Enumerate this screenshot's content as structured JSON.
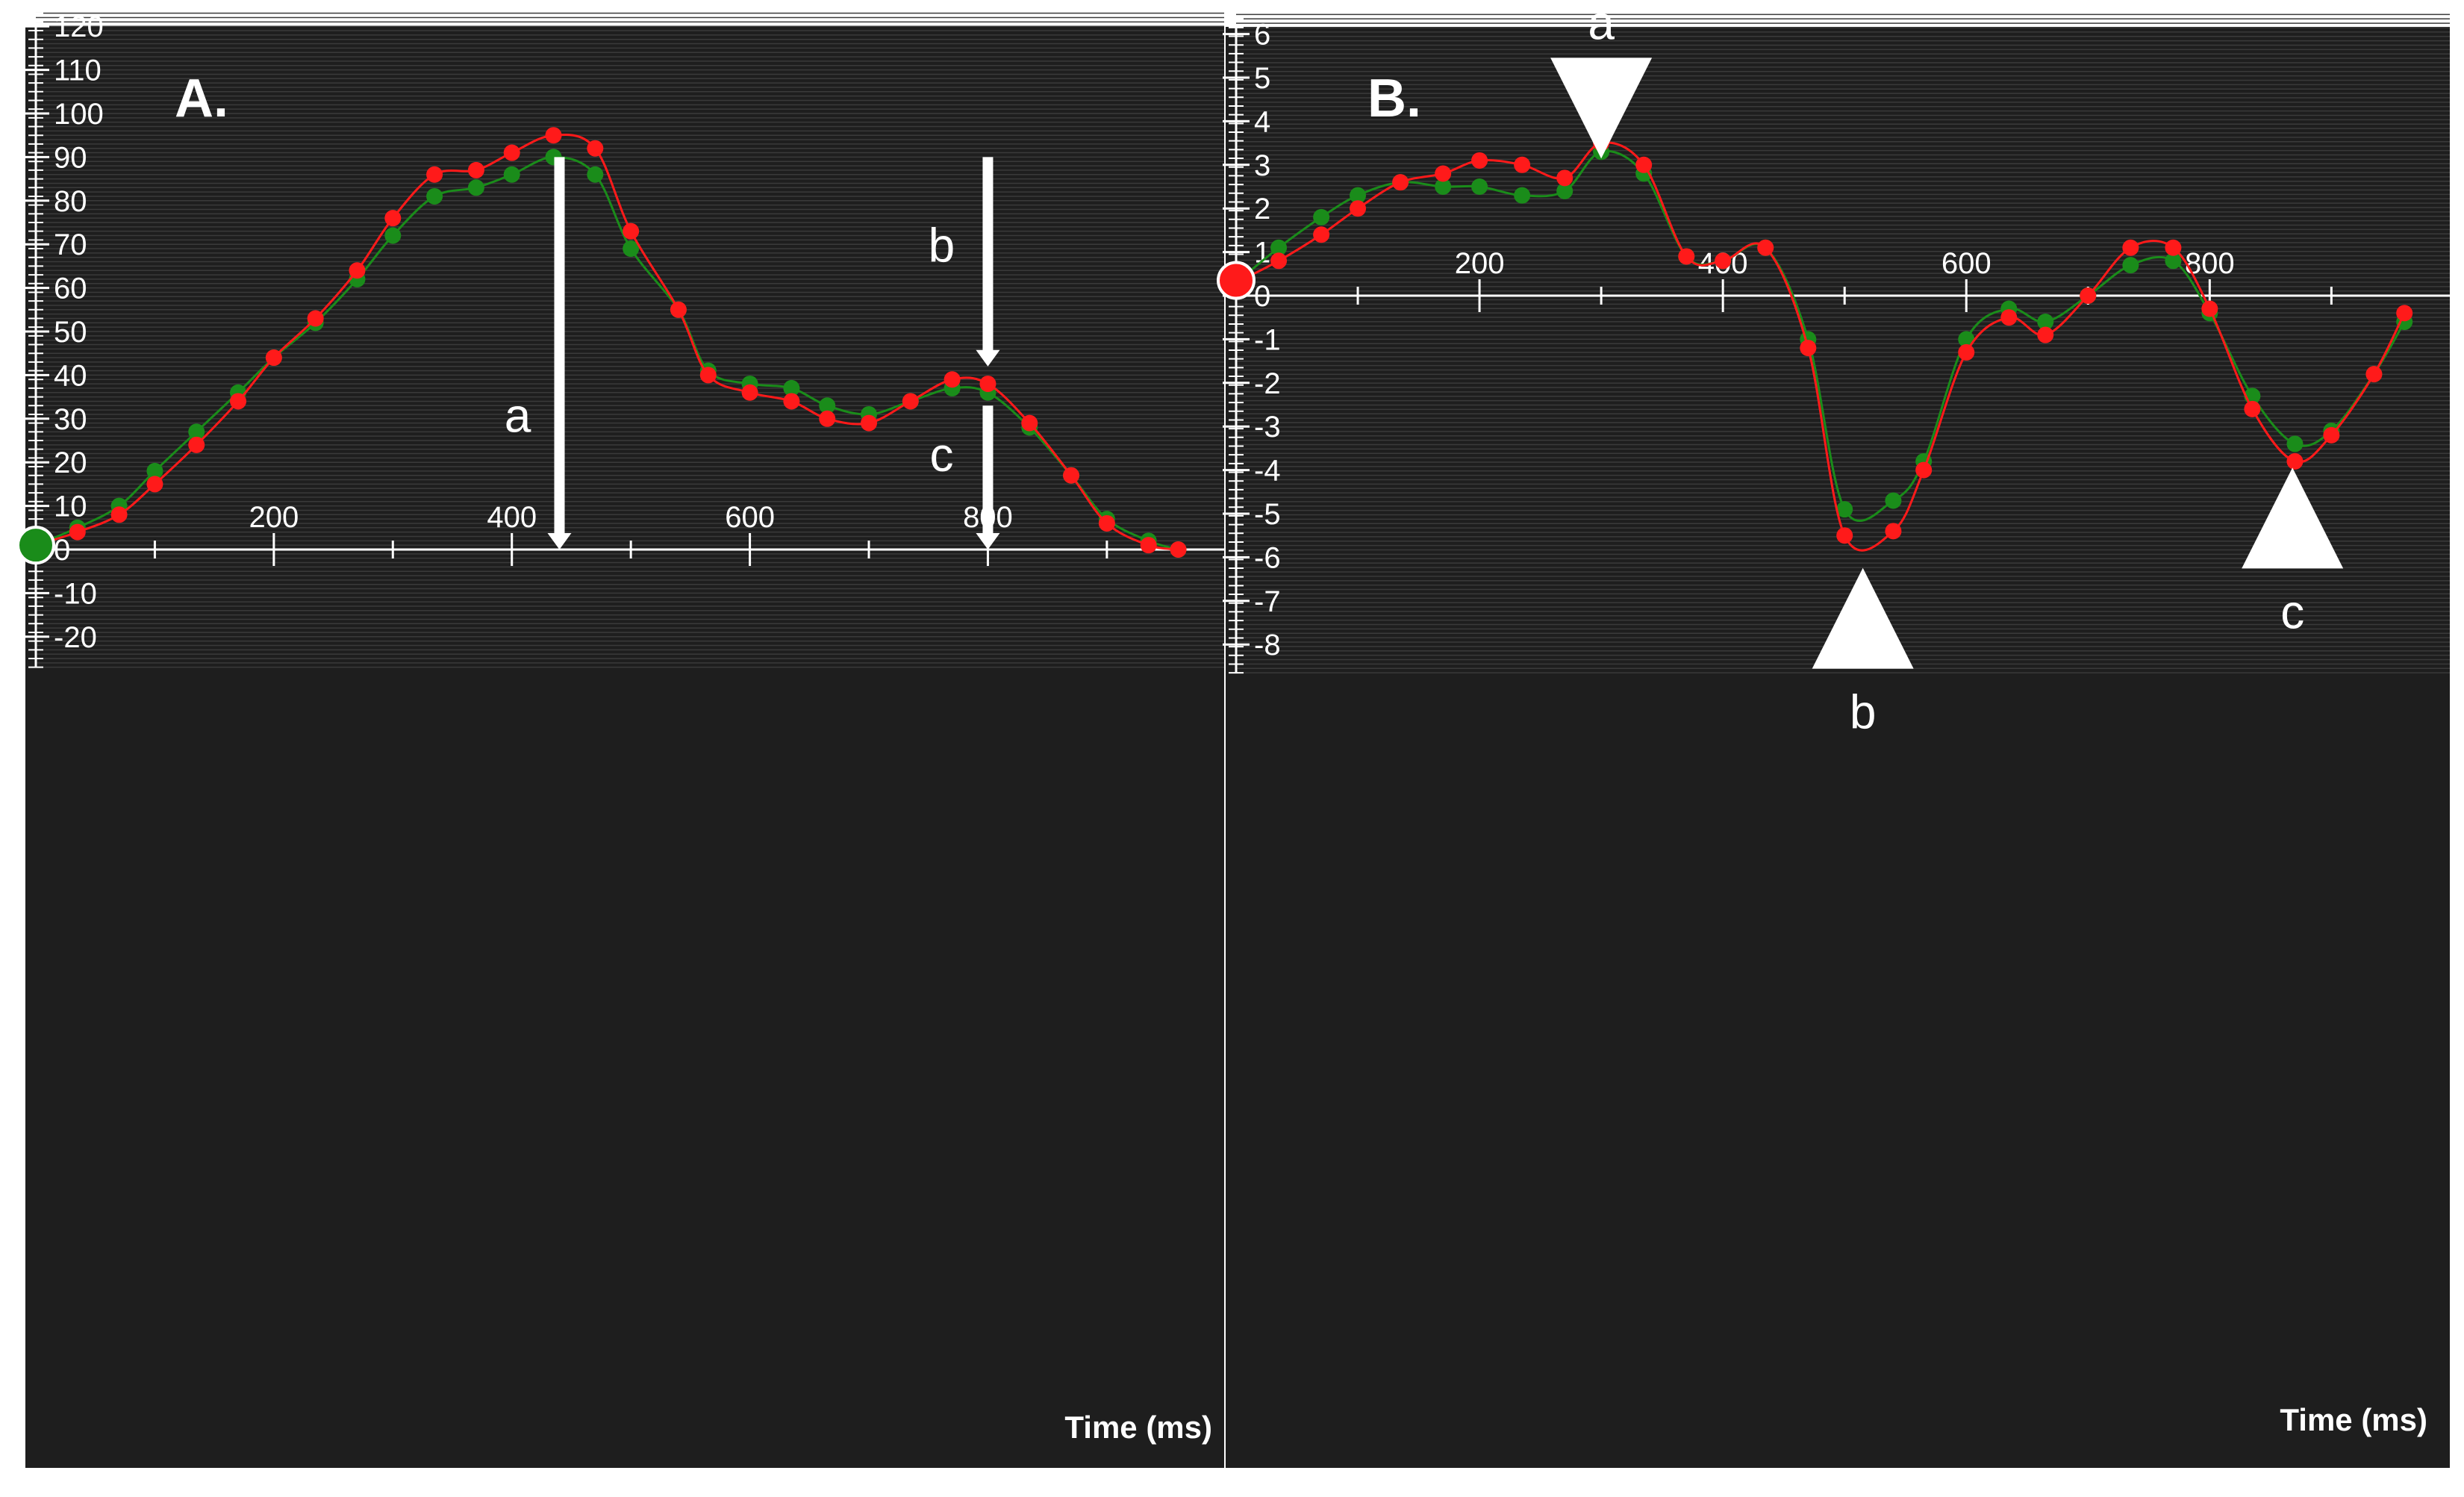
{
  "colors": {
    "background": "#1e1e1e",
    "grid": "#3a3a3a",
    "axis": "#ffffff",
    "red_series": "#ff1a1a",
    "green_series": "#1a8c1a"
  },
  "chart_data": [
    {
      "type": "line",
      "panel_label": "A.",
      "xlabel": "Time (ms)",
      "ylabel": "",
      "xlim": [
        0,
        970
      ],
      "ylim": [
        -27,
        123
      ],
      "grid": true,
      "x_ticks": [
        "200",
        "400",
        "600",
        "800"
      ],
      "y_ticks": [
        "120",
        "110",
        "100",
        "90",
        "80",
        "70",
        "60",
        "50",
        "40",
        "30",
        "20",
        "10",
        "0",
        "-10",
        "-20"
      ],
      "series": [
        {
          "color": "red",
          "x": [
            0,
            35,
            70,
            100,
            135,
            170,
            200,
            235,
            270,
            300,
            335,
            370,
            400,
            435,
            470,
            500,
            540,
            565,
            600,
            635,
            665,
            700,
            735,
            770,
            800,
            835,
            870,
            900,
            935,
            960
          ],
          "values": [
            1,
            4,
            8,
            15,
            24,
            34,
            44,
            53,
            64,
            76,
            86,
            87,
            91,
            95,
            92,
            73,
            55,
            40,
            36,
            34,
            30,
            29,
            34,
            39,
            38,
            29,
            17,
            6,
            1,
            0
          ]
        },
        {
          "color": "green",
          "x": [
            0,
            35,
            70,
            100,
            135,
            170,
            200,
            235,
            270,
            300,
            335,
            370,
            400,
            435,
            470,
            500,
            540,
            565,
            600,
            635,
            665,
            700,
            735,
            770,
            800,
            835,
            870,
            900,
            935,
            960
          ],
          "values": [
            1,
            5,
            10,
            18,
            27,
            36,
            44,
            52,
            62,
            72,
            81,
            83,
            86,
            90,
            86,
            69,
            55,
            41,
            38,
            37,
            33,
            31,
            34,
            37,
            36,
            28,
            17,
            7,
            2,
            0
          ]
        }
      ],
      "annotations": [
        {
          "label": "a",
          "type": "arrow-down",
          "x": 440,
          "y_from": 90,
          "y_to": 0
        },
        {
          "label": "b",
          "type": "arrow-down",
          "x": 800,
          "y_from": 90,
          "y_to": 42
        },
        {
          "label": "c",
          "type": "arrow-down",
          "x": 800,
          "y_from": 33,
          "y_to": 0
        }
      ]
    },
    {
      "type": "line",
      "panel_label": "B.",
      "xlabel": "Time (ms)",
      "ylabel": "",
      "xlim": [
        0,
        970
      ],
      "ylim": [
        -8.65,
        6.45
      ],
      "grid": true,
      "x_ticks": [
        "200",
        "400",
        "600",
        "800"
      ],
      "y_ticks": [
        "6",
        "5",
        "4",
        "3",
        "2",
        "1",
        "0",
        "-1",
        "-2",
        "-3",
        "-4",
        "-5",
        "-6",
        "-7",
        "-8"
      ],
      "series": [
        {
          "color": "red",
          "x": [
            0,
            35,
            70,
            100,
            135,
            170,
            200,
            235,
            270,
            300,
            335,
            370,
            400,
            435,
            470,
            500,
            540,
            565,
            600,
            635,
            665,
            700,
            735,
            770,
            800,
            835,
            870,
            900,
            935,
            960
          ],
          "values": [
            0.3,
            0.8,
            1.4,
            2.0,
            2.6,
            2.8,
            3.1,
            3.0,
            2.7,
            3.5,
            3.0,
            0.9,
            0.8,
            1.1,
            -1.2,
            -5.5,
            -5.4,
            -4.0,
            -1.3,
            -0.5,
            -0.9,
            0.0,
            1.1,
            1.1,
            -0.3,
            -2.6,
            -3.8,
            -3.2,
            -1.8,
            -0.4
          ],
          "start_marker_value": 0.35
        },
        {
          "color": "green",
          "x": [
            0,
            35,
            70,
            100,
            135,
            170,
            200,
            235,
            270,
            300,
            335,
            370,
            400,
            435,
            470,
            500,
            540,
            565,
            600,
            635,
            665,
            700,
            735,
            770,
            800,
            835,
            870,
            900,
            935,
            960
          ],
          "values": [
            0.3,
            1.1,
            1.8,
            2.3,
            2.6,
            2.5,
            2.5,
            2.3,
            2.4,
            3.3,
            2.8,
            0.9,
            0.8,
            1.1,
            -1.0,
            -4.9,
            -4.7,
            -3.8,
            -1.0,
            -0.3,
            -0.6,
            0.0,
            0.7,
            0.8,
            -0.4,
            -2.3,
            -3.4,
            -3.1,
            -1.8,
            -0.6
          ]
        }
      ],
      "annotations": [
        {
          "label": "a",
          "type": "triangle-down",
          "x": 300,
          "y": 4.6
        },
        {
          "label": "b",
          "type": "triangle-up",
          "x": 515,
          "y": -7.1
        },
        {
          "label": "c",
          "type": "triangle-up",
          "x": 868,
          "y": -4.8
        }
      ]
    }
  ]
}
